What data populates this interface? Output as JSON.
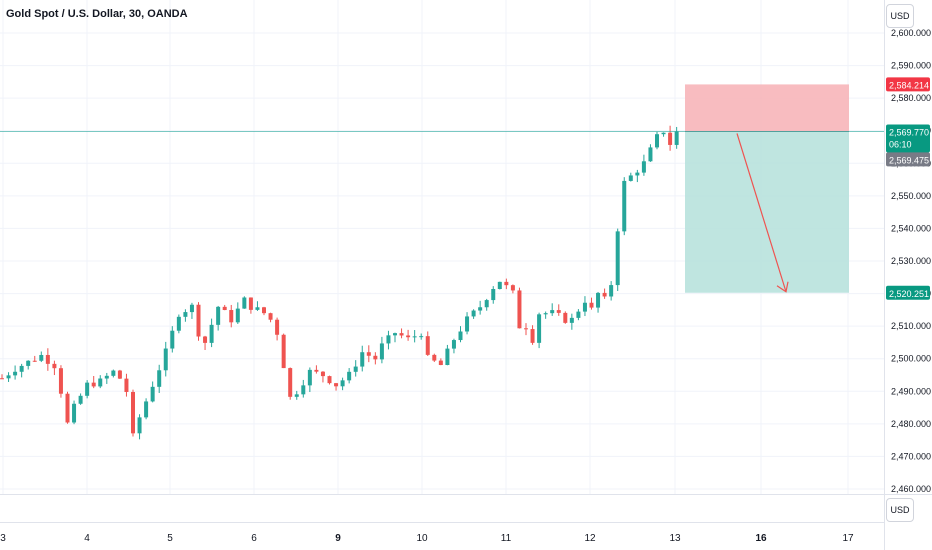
{
  "header": {
    "title": "Gold Spot / U.S. Dollar, 30, OANDA"
  },
  "currency": {
    "top": "USD",
    "bottom": "USD"
  },
  "colors": {
    "up": "#26a69a",
    "down": "#ef5350",
    "grid": "#f0f3fa",
    "stop_zone": "#f7b0b5",
    "target_zone": "#b4e1da",
    "arrow": "#ef5350"
  },
  "price_labels": {
    "stop": {
      "text": "2,584.214",
      "color": "#f23645"
    },
    "current": {
      "text": "2,569.770",
      "sub": "06:10",
      "color": "#089981"
    },
    "prev": {
      "text": "2,569.475",
      "color": "#787b86"
    },
    "target": {
      "text": "2,520.251",
      "color": "#089981"
    }
  },
  "chart_data": {
    "type": "candlestick",
    "title": "Gold Spot / U.S. Dollar, 30, OANDA",
    "y_ticks": [
      "2,460.000",
      "2,470.000",
      "2,480.000",
      "2,490.000",
      "2,500.000",
      "2,510.000",
      "2,520.000",
      "2,530.000",
      "2,540.000",
      "2,550.000",
      "2,560.000",
      "2,570.000",
      "2,580.000",
      "2,590.000",
      "2,600.000"
    ],
    "y_tick_values": [
      2460,
      2470,
      2480,
      2490,
      2500,
      2510,
      2520,
      2530,
      2540,
      2550,
      2560,
      2570,
      2580,
      2590,
      2600
    ],
    "ylim": [
      2457,
      2605
    ],
    "x_ticks": [
      {
        "label": "3",
        "bold": false
      },
      {
        "label": "4",
        "bold": false
      },
      {
        "label": "5",
        "bold": false
      },
      {
        "label": "6",
        "bold": false
      },
      {
        "label": "9",
        "bold": true
      },
      {
        "label": "10",
        "bold": false
      },
      {
        "label": "11",
        "bold": false
      },
      {
        "label": "12",
        "bold": false
      },
      {
        "label": "13",
        "bold": false
      },
      {
        "label": "16",
        "bold": true
      },
      {
        "label": "17",
        "bold": false
      }
    ],
    "current_price": 2569.77,
    "position": {
      "direction": "short",
      "entry": 2569.77,
      "stop": 2584.214,
      "target": 2520.251
    },
    "path": [
      [
        0,
        2494
      ],
      [
        2,
        2497
      ],
      [
        6,
        2501
      ],
      [
        8,
        2498
      ],
      [
        9,
        2490
      ],
      [
        10,
        2480
      ],
      [
        11,
        2485
      ],
      [
        13,
        2492
      ],
      [
        15,
        2493
      ],
      [
        17,
        2496
      ],
      [
        18,
        2494
      ],
      [
        19,
        2490
      ],
      [
        20,
        2476
      ],
      [
        21,
        2482
      ],
      [
        23,
        2492
      ],
      [
        25,
        2502
      ],
      [
        27,
        2514
      ],
      [
        29,
        2516
      ],
      [
        30,
        2508
      ],
      [
        31,
        2505
      ],
      [
        33,
        2516
      ],
      [
        35,
        2512
      ],
      [
        37,
        2518
      ],
      [
        38,
        2516
      ],
      [
        40,
        2514
      ],
      [
        41,
        2512
      ],
      [
        42,
        2508
      ],
      [
        43,
        2498
      ],
      [
        44,
        2488
      ],
      [
        45,
        2490
      ],
      [
        47,
        2496
      ],
      [
        49,
        2495
      ],
      [
        51,
        2492
      ],
      [
        53,
        2495
      ],
      [
        55,
        2502
      ],
      [
        57,
        2500
      ],
      [
        58,
        2504
      ],
      [
        60,
        2508
      ],
      [
        62,
        2506
      ],
      [
        64,
        2508
      ],
      [
        65,
        2500
      ],
      [
        67,
        2498
      ],
      [
        69,
        2506
      ],
      [
        71,
        2512
      ],
      [
        73,
        2516
      ],
      [
        75,
        2522
      ],
      [
        76,
        2524
      ],
      [
        78,
        2520
      ],
      [
        79,
        2510
      ],
      [
        80,
        2510
      ],
      [
        81,
        2506
      ],
      [
        82,
        2514
      ],
      [
        84,
        2514
      ],
      [
        86,
        2512
      ],
      [
        87,
        2512
      ],
      [
        88,
        2515
      ],
      [
        89,
        2518
      ],
      [
        90,
        2515
      ],
      [
        91,
        2520
      ],
      [
        92,
        2518
      ],
      [
        93,
        2523
      ],
      [
        94,
        2540
      ],
      [
        95,
        2554
      ],
      [
        96,
        2556
      ],
      [
        98,
        2560
      ],
      [
        99,
        2564
      ],
      [
        100,
        2568
      ],
      [
        101,
        2570
      ],
      [
        102,
        2566
      ],
      [
        103,
        2569.8
      ]
    ]
  }
}
